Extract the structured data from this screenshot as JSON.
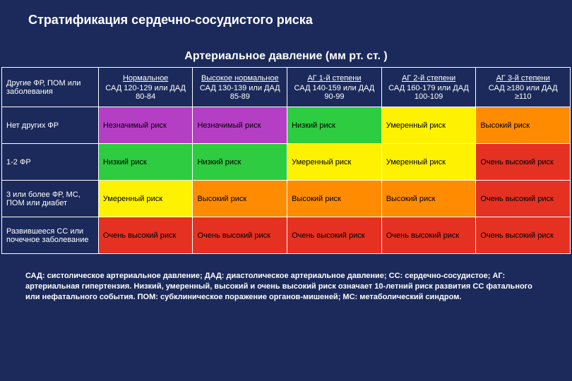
{
  "page": {
    "title": "Стратификация сердечно-сосудистого риска",
    "subtitle": "Артериальное давление (мм рт. ст. )",
    "footnote": "САД: систолическое артериальное давление; ДАД: диастолическое артериальное давление; СС: сердечно-сосудистое; АГ: артериальная гипертензия. Низкий, умеренный, высокий и очень высокий риск означает 10-летний риск развития СС фатального или нефатального события. ПОМ: субклиническое поражение органов-мишеней; МС: метаболический синдром."
  },
  "columns": [
    {
      "label": "Другие ФР, ПОМ или заболевания",
      "sub": ""
    },
    {
      "label": "Нормальное",
      "sub": "САД 120-129 или ДАД 80-84"
    },
    {
      "label": "Высокое нормальное",
      "sub": "САД 130-139 или ДАД 85-89"
    },
    {
      "label": "АГ 1-й степени",
      "sub": "САД 140-159 или ДАД 90-99"
    },
    {
      "label": "АГ 2-й степени",
      "sub": "САД 160-179 или ДАД 100-109"
    },
    {
      "label": "АГ 3-й степени",
      "sub": "САД ≥180 или ДАД ≥110"
    }
  ],
  "rows": [
    {
      "header": "Нет других ФР",
      "cells": [
        {
          "text": "Незначимый риск",
          "bg": "#b53fc4"
        },
        {
          "text": "Незначимый риск",
          "bg": "#b53fc4"
        },
        {
          "text": "Низкий риск",
          "bg": "#2ecc40"
        },
        {
          "text": "Умеренный риск",
          "bg": "#fff200"
        },
        {
          "text": "Высокий риск",
          "bg": "#ff8c00"
        }
      ]
    },
    {
      "header": "1-2 ФР",
      "cells": [
        {
          "text": "Низкий риск",
          "bg": "#2ecc40"
        },
        {
          "text": "Низкий риск",
          "bg": "#2ecc40"
        },
        {
          "text": "Умеренный риск",
          "bg": "#fff200"
        },
        {
          "text": "Умеренный риск",
          "bg": "#fff200"
        },
        {
          "text": "Очень высокий риск",
          "bg": "#e53122"
        }
      ]
    },
    {
      "header": "3 или более ФР, МС, ПОМ или диабет",
      "cells": [
        {
          "text": "Умеренный риск",
          "bg": "#fff200"
        },
        {
          "text": "Высокий риск",
          "bg": "#ff8c00"
        },
        {
          "text": "Высокий риск",
          "bg": "#ff8c00"
        },
        {
          "text": "Высокий риск",
          "bg": "#ff8c00"
        },
        {
          "text": "Очень высокий риск",
          "bg": "#e53122"
        }
      ]
    },
    {
      "header": "Развившееся СС или почечное заболевание",
      "cells": [
        {
          "text": "Очень высокий риск",
          "bg": "#e53122"
        },
        {
          "text": "Очень высокий риск",
          "bg": "#e53122"
        },
        {
          "text": "Очень высокий риск",
          "bg": "#e53122"
        },
        {
          "text": "Очень высокий риск",
          "bg": "#e53122"
        },
        {
          "text": "Очень высокий риск",
          "bg": "#e53122"
        }
      ]
    }
  ],
  "col_widths": [
    "17%",
    "16.6%",
    "16.6%",
    "16.6%",
    "16.6%",
    "16.6%"
  ]
}
